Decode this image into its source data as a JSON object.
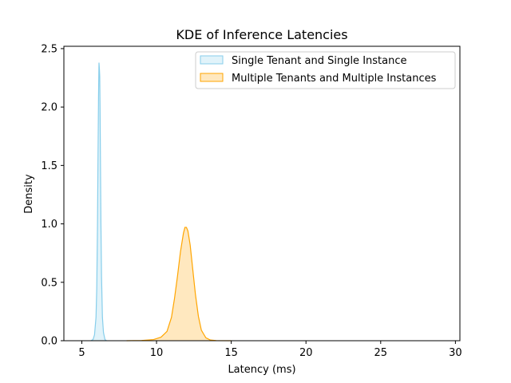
{
  "chart_data": {
    "type": "area",
    "title": "KDE of Inference Latencies",
    "xlabel": "Latency (ms)",
    "ylabel": "Density",
    "xlim": [
      3.8,
      30.3
    ],
    "ylim": [
      0,
      2.52
    ],
    "xticks": [
      5,
      10,
      15,
      20,
      25,
      30
    ],
    "xtick_labels": [
      "5",
      "10",
      "15",
      "20",
      "25",
      "30"
    ],
    "yticks": [
      0.0,
      0.5,
      1.0,
      1.5,
      2.0,
      2.5
    ],
    "ytick_labels": [
      "0.0",
      "0.5",
      "1.0",
      "1.5",
      "2.0",
      "2.5"
    ],
    "grid": false,
    "legend_position": "top-right",
    "series": [
      {
        "name": "Single Tenant and Single Instance",
        "color": "#87ceeb",
        "fill_opacity": 0.25,
        "x": [
          5.6,
          5.75,
          5.85,
          5.95,
          6.0,
          6.05,
          6.08,
          6.12,
          6.15,
          6.18,
          6.2,
          6.22,
          6.25,
          6.28,
          6.32,
          6.38,
          6.45,
          6.55,
          6.65
        ],
        "y": [
          0.0,
          0.01,
          0.05,
          0.2,
          0.45,
          1.0,
          1.5,
          2.1,
          2.38,
          2.32,
          2.26,
          2.0,
          1.5,
          1.0,
          0.55,
          0.2,
          0.07,
          0.01,
          0.0
        ]
      },
      {
        "name": "Multiple Tenants and Multiple Instances",
        "color": "#ffa500",
        "fill_opacity": 0.25,
        "x": [
          8.0,
          9.0,
          9.8,
          10.3,
          10.7,
          11.0,
          11.2,
          11.4,
          11.6,
          11.8,
          11.9,
          12.0,
          12.1,
          12.25,
          12.4,
          12.6,
          12.8,
          13.0,
          13.3,
          13.6,
          14.0,
          15.0
        ],
        "y": [
          0.0,
          0.002,
          0.01,
          0.03,
          0.08,
          0.2,
          0.36,
          0.55,
          0.76,
          0.92,
          0.97,
          0.97,
          0.94,
          0.82,
          0.64,
          0.4,
          0.21,
          0.09,
          0.025,
          0.006,
          0.001,
          0.0
        ]
      }
    ]
  }
}
